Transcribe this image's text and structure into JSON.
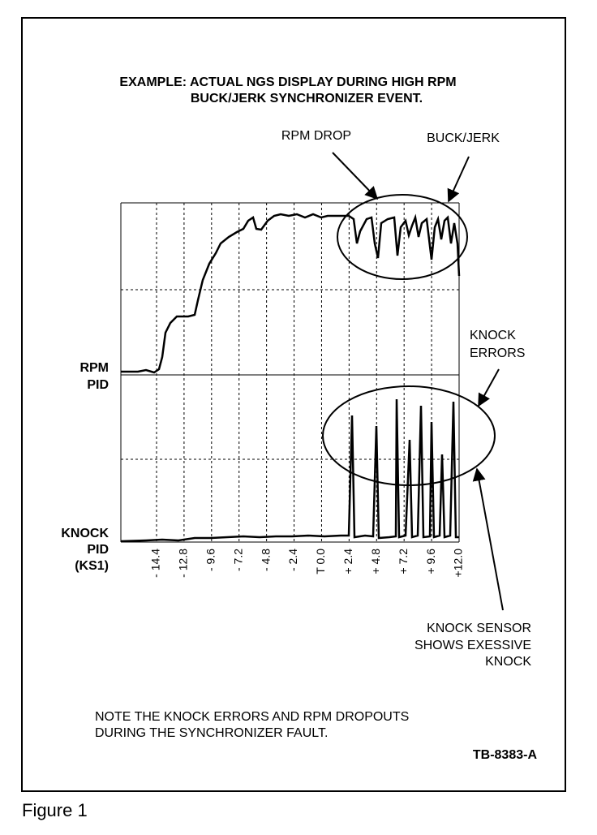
{
  "title": [
    "EXAMPLE: ACTUAL NGS DISPLAY DURING HIGH RPM",
    "BUCK/JERK SYNCHRONIZER EVENT."
  ],
  "callouts": {
    "rpm_drop": "RPM DROP",
    "buck_jerk": "BUCK/JERK",
    "knock_errors": [
      "KNOCK",
      "ERRORS"
    ],
    "knock_sensor": [
      "KNOCK SENSOR",
      "SHOWS EXESSIVE",
      "KNOCK"
    ]
  },
  "trace_labels": {
    "rpm": [
      "RPM",
      "PID"
    ],
    "knock": [
      "KNOCK",
      "PID",
      "(KS1)"
    ]
  },
  "time_axis": {
    "ticks": [
      "- 14.4",
      "- 12.8",
      "- 9.6",
      "- 7.2",
      "- 4.8",
      "- 2.4",
      "T 0.0",
      "+ 2.4",
      "+ 4.8",
      "+ 7.2",
      "+ 9.6",
      "+12.0"
    ]
  },
  "note": [
    "NOTE THE KNOCK ERRORS AND RPM DROPOUTS",
    "DURING THE SYNCHRONIZER FAULT."
  ],
  "figure_id": "TB-8383-A",
  "caption": "Figure 1"
}
